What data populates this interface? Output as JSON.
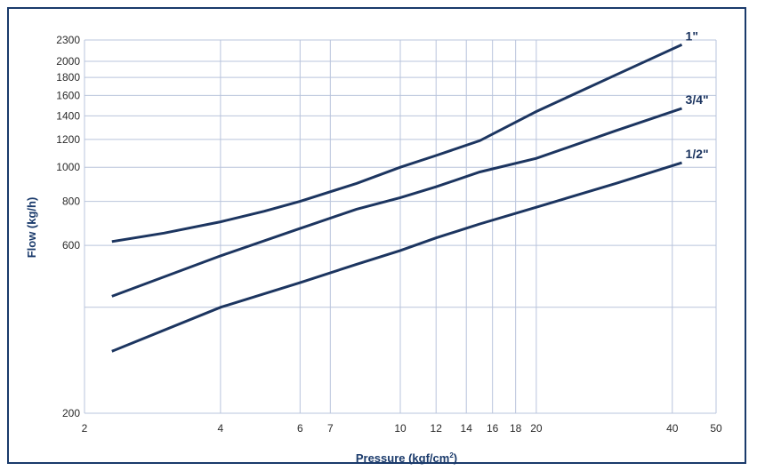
{
  "chart_data": {
    "type": "line",
    "title": "",
    "xlabel": "Pressure (kgf/cm",
    "xlabel_sup": "2",
    "xlabel_close": ")",
    "ylabel": "Flow (kg/h)",
    "xscale": "log",
    "yscale": "log",
    "xlim": [
      2,
      50
    ],
    "ylim": [
      200,
      2300
    ],
    "xticks": [
      2,
      4,
      6,
      7,
      10,
      12,
      14,
      16,
      18,
      20,
      40,
      50
    ],
    "yticks": [
      200,
      600,
      800,
      1000,
      1200,
      1400,
      1600,
      1800,
      2000,
      2300
    ],
    "y_gridlines": [
      200,
      400,
      600,
      800,
      1000,
      1200,
      1400,
      1600,
      1800,
      2000,
      2300
    ],
    "grid": true,
    "series": [
      {
        "name": "1\"",
        "color": "#1c3560",
        "points": [
          [
            2.3,
            615
          ],
          [
            3,
            650
          ],
          [
            4,
            700
          ],
          [
            5,
            750
          ],
          [
            6,
            800
          ],
          [
            8,
            900
          ],
          [
            10,
            1000
          ],
          [
            12,
            1080
          ],
          [
            15,
            1190
          ],
          [
            20,
            1440
          ],
          [
            30,
            1830
          ],
          [
            42,
            2230
          ]
        ]
      },
      {
        "name": "3/4\"",
        "color": "#1c3560",
        "points": [
          [
            2.3,
            430
          ],
          [
            4,
            560
          ],
          [
            6,
            670
          ],
          [
            8,
            760
          ],
          [
            10,
            820
          ],
          [
            12,
            880
          ],
          [
            15,
            970
          ],
          [
            20,
            1060
          ],
          [
            30,
            1270
          ],
          [
            42,
            1470
          ]
        ]
      },
      {
        "name": "1/2\"",
        "color": "#1c3560",
        "points": [
          [
            2.3,
            300
          ],
          [
            4,
            400
          ],
          [
            6,
            470
          ],
          [
            8,
            530
          ],
          [
            10,
            580
          ],
          [
            12,
            630
          ],
          [
            15,
            690
          ],
          [
            20,
            770
          ],
          [
            30,
            900
          ],
          [
            42,
            1030
          ]
        ]
      }
    ]
  }
}
